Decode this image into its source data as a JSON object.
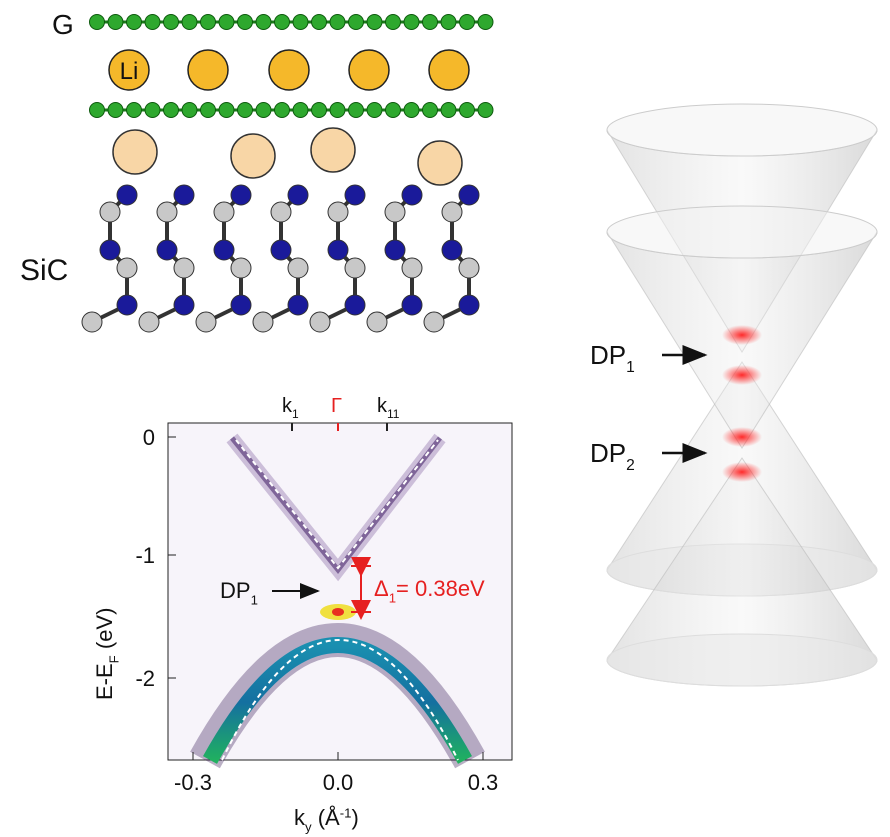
{
  "lattice": {
    "graphene_label": "G",
    "lithium_label": "Li",
    "substrate_label": "SiC"
  },
  "arpes": {
    "top_labels": [
      {
        "base": "k",
        "sub": "1"
      },
      {
        "base": "Γ"
      },
      {
        "base": "k",
        "sub": "11"
      }
    ],
    "y_tick_labels": [
      "0",
      "-1",
      "-2"
    ],
    "x_tick_labels": [
      "-0.3",
      "0.0",
      "0.3"
    ],
    "y_label": {
      "base": "E-E",
      "sub": "F",
      "rest": " (eV)"
    },
    "x_label": {
      "base": "k",
      "sub": "y",
      "rest": " (Å",
      "sup": "-1",
      "end": ")"
    },
    "dirac_point": {
      "base": "DP",
      "sub": "1"
    },
    "gap": {
      "base": "Δ",
      "sub": "1",
      "rest": "= 0.38eV"
    }
  },
  "cones": {
    "labels": [
      {
        "base": "DP",
        "sub": "1"
      },
      {
        "base": "DP",
        "sub": "2"
      }
    ]
  }
}
